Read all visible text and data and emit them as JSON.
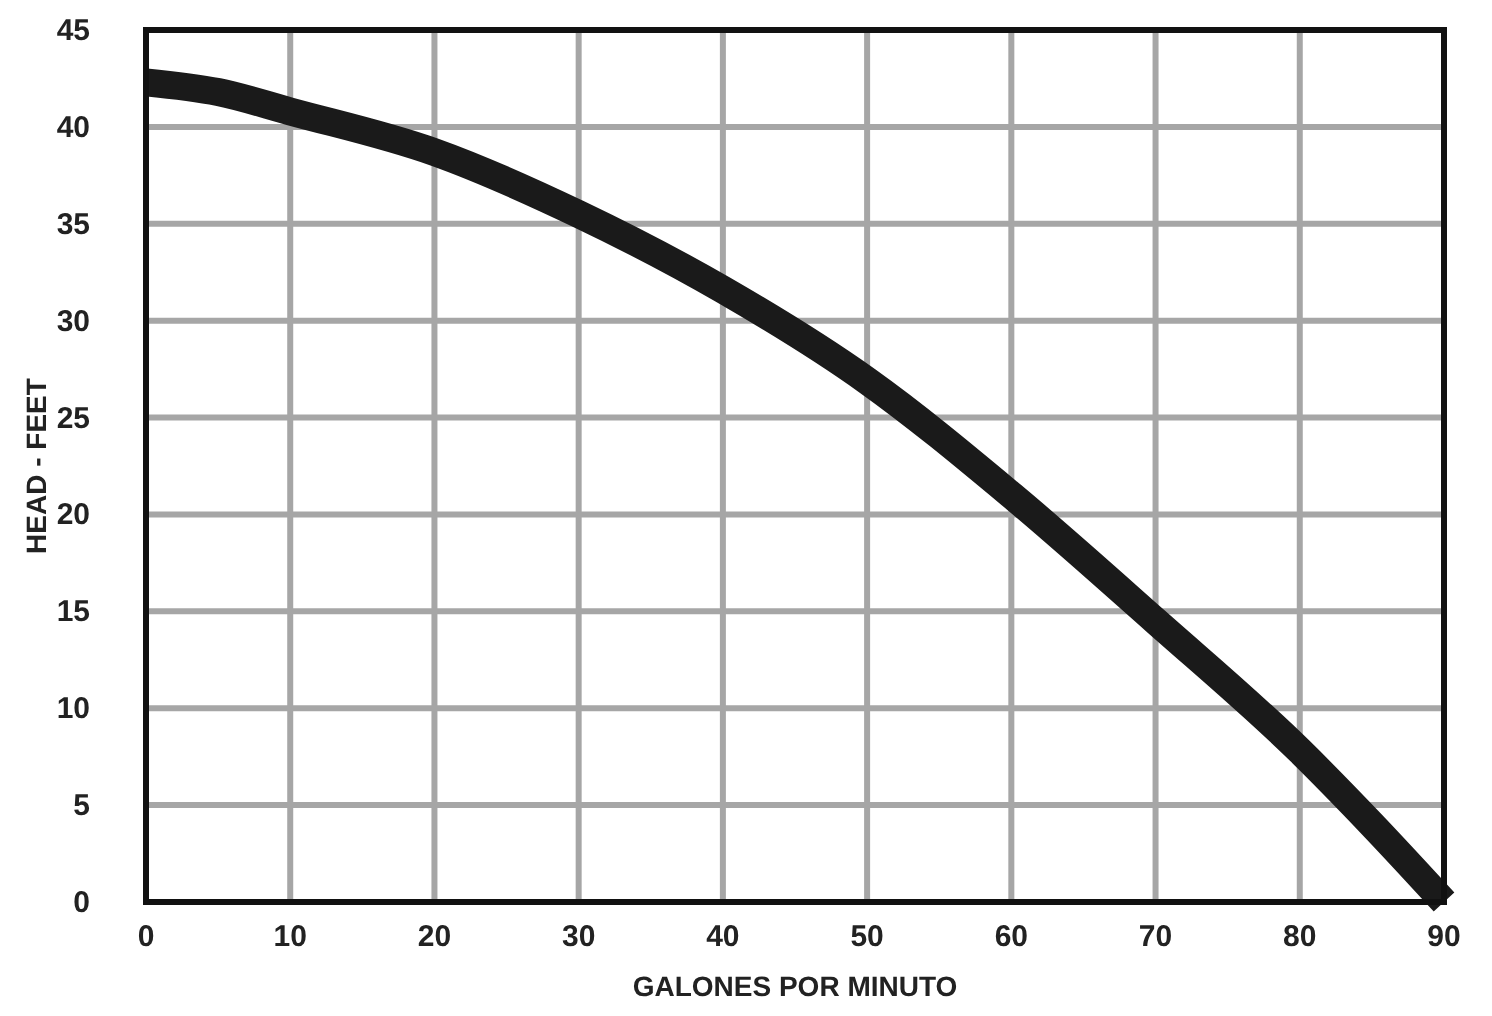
{
  "chart_data": {
    "type": "line",
    "xlabel": "GALONES POR MINUTO",
    "ylabel": "HEAD - FEET",
    "x": [
      0,
      5,
      10,
      20,
      30,
      40,
      50,
      60,
      70,
      80,
      85,
      90
    ],
    "series": [
      {
        "color": "#1a1a1a",
        "values": [
          42.3,
          41.8,
          40.8,
          38.7,
          35.5,
          31.6,
          26.9,
          21,
          14.5,
          7.8,
          4,
          0
        ]
      }
    ],
    "xlim": [
      0,
      90
    ],
    "xticks": [
      0,
      10,
      20,
      30,
      40,
      50,
      60,
      70,
      80,
      90
    ],
    "ylim": [
      0,
      45
    ],
    "yticks": [
      0,
      5,
      10,
      15,
      20,
      25,
      30,
      35,
      40,
      45
    ],
    "grid": true,
    "marker": "none",
    "line_style": "solid"
  }
}
